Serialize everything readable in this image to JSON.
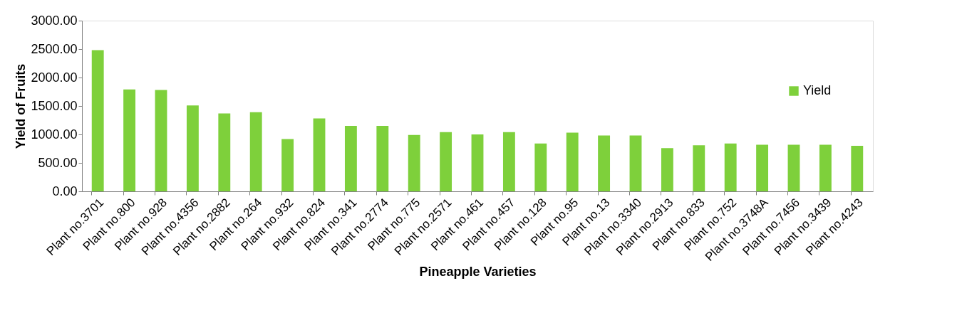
{
  "chart_data": {
    "type": "bar",
    "xlabel": "Pineapple Varieties",
    "ylabel": "Yield of Fruits",
    "categories": [
      "Plant no.3701",
      "Plant no.800",
      "Plant no.928",
      "Plant no.4356",
      "Plant no.2882",
      "Plant no.264",
      "Plant no.932",
      "Plant no.824",
      "Plant no.341",
      "Plant no.2774",
      "Plant no.775",
      "Plant no.2571",
      "Plant no.461",
      "Plant no.457",
      "Plant no.128",
      "Plant no.95",
      "Plant no.13",
      "Plant no.3340",
      "Plant no.2913",
      "Plant no.833",
      "Plant no.752",
      "Plant no.3748A",
      "Plant no.7456",
      "Plant no.3439",
      "Plant no.4243"
    ],
    "series": [
      {
        "name": "Yield",
        "color": "#7ed03b",
        "values": [
          2480,
          1790,
          1780,
          1510,
          1370,
          1390,
          920,
          1280,
          1150,
          1150,
          990,
          1040,
          1000,
          1040,
          840,
          1030,
          980,
          980,
          760,
          810,
          840,
          820,
          820,
          820,
          800
        ]
      }
    ],
    "ylim": [
      0,
      3000
    ],
    "yticks": [
      {
        "value": 0,
        "label": "0.00"
      },
      {
        "value": 500,
        "label": "500.00"
      },
      {
        "value": 1000,
        "label": "1000.00"
      },
      {
        "value": 1500,
        "label": "1500.00"
      },
      {
        "value": 2000,
        "label": "2000.00"
      },
      {
        "value": 2500,
        "label": "2500.00"
      },
      {
        "value": 3000,
        "label": "3000.00"
      }
    ],
    "grid": false,
    "legend": "right"
  }
}
